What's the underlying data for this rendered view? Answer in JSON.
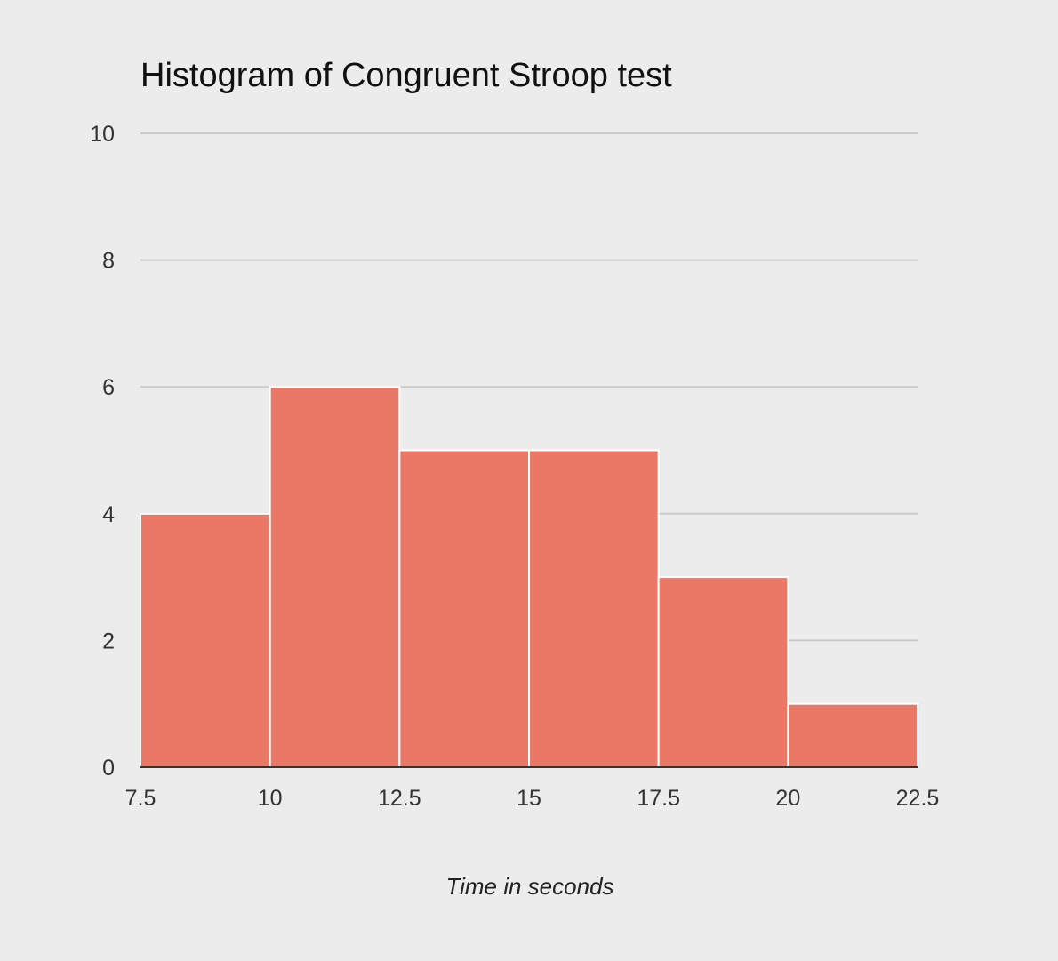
{
  "chart_data": {
    "type": "bar",
    "subtype": "histogram",
    "title": "Histogram of Congruent Stroop test",
    "xlabel": "Time in seconds",
    "ylabel": "",
    "bin_edges": [
      7.5,
      10,
      12.5,
      15,
      17.5,
      20,
      22.5
    ],
    "x_tick_labels": [
      "7.5",
      "10",
      "12.5",
      "15",
      "17.5",
      "20",
      "22.5"
    ],
    "values": [
      4,
      6,
      5,
      5,
      3,
      1
    ],
    "xlim": [
      7.5,
      22.5
    ],
    "ylim": [
      0,
      10
    ],
    "y_ticks": [
      0,
      2,
      4,
      6,
      8,
      10
    ],
    "y_tick_labels": [
      "0",
      "2",
      "4",
      "6",
      "8",
      "10"
    ],
    "grid": true,
    "legend": "none",
    "bar_color": "#eb7866",
    "background_color": "#ebeceb"
  }
}
